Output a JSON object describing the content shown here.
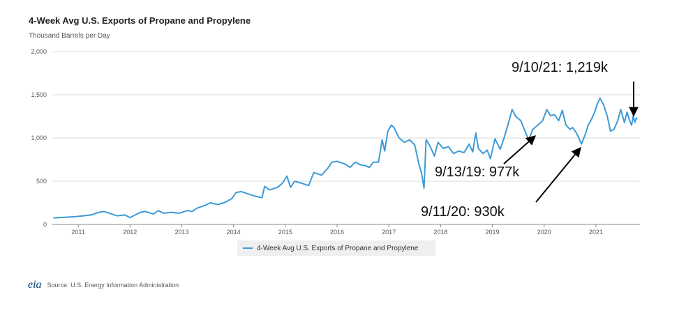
{
  "chart_data": {
    "type": "line",
    "title": "4-Week Avg U.S. Exports of Propane and Propylene",
    "subtitle": "Thousand Barrels per Day",
    "xlabel": "",
    "ylabel": "Thousand Barrels per Day",
    "xlim": [
      2010.5,
      2021.85
    ],
    "ylim": [
      0,
      2000
    ],
    "y_ticks": [
      0,
      500,
      1000,
      1500,
      2000
    ],
    "y_tick_labels": [
      "0",
      "500",
      "1,000",
      "1,500",
      "2,000"
    ],
    "x_ticks": [
      2011,
      2012,
      2013,
      2014,
      2015,
      2016,
      2017,
      2018,
      2019,
      2020,
      2021
    ],
    "x_tick_labels": [
      "2011",
      "2012",
      "2013",
      "2014",
      "2015",
      "2016",
      "2017",
      "2018",
      "2019",
      "2020",
      "2021"
    ],
    "grid": "horizontal",
    "legend_position": "bottom-center",
    "series": [
      {
        "name": "4-Week Avg U.S. Exports of Propane and Propylene",
        "color": "#3d9ad8",
        "points": [
          [
            2010.52,
            75
          ],
          [
            2010.65,
            80
          ],
          [
            2010.8,
            85
          ],
          [
            2010.95,
            90
          ],
          [
            2011.1,
            100
          ],
          [
            2011.25,
            110
          ],
          [
            2011.4,
            140
          ],
          [
            2011.5,
            150
          ],
          [
            2011.6,
            130
          ],
          [
            2011.75,
            100
          ],
          [
            2011.9,
            110
          ],
          [
            2012.0,
            80
          ],
          [
            2012.1,
            110
          ],
          [
            2012.2,
            140
          ],
          [
            2012.3,
            150
          ],
          [
            2012.45,
            120
          ],
          [
            2012.55,
            160
          ],
          [
            2012.65,
            130
          ],
          [
            2012.8,
            140
          ],
          [
            2012.95,
            130
          ],
          [
            2013.1,
            160
          ],
          [
            2013.2,
            150
          ],
          [
            2013.3,
            190
          ],
          [
            2013.45,
            220
          ],
          [
            2013.55,
            250
          ],
          [
            2013.7,
            230
          ],
          [
            2013.85,
            260
          ],
          [
            2013.97,
            300
          ],
          [
            2014.05,
            370
          ],
          [
            2014.15,
            380
          ],
          [
            2014.25,
            360
          ],
          [
            2014.4,
            330
          ],
          [
            2014.55,
            310
          ],
          [
            2014.6,
            440
          ],
          [
            2014.7,
            400
          ],
          [
            2014.85,
            430
          ],
          [
            2014.95,
            480
          ],
          [
            2015.03,
            560
          ],
          [
            2015.1,
            430
          ],
          [
            2015.18,
            500
          ],
          [
            2015.3,
            480
          ],
          [
            2015.45,
            450
          ],
          [
            2015.55,
            600
          ],
          [
            2015.7,
            570
          ],
          [
            2015.82,
            650
          ],
          [
            2015.9,
            720
          ],
          [
            2016.0,
            730
          ],
          [
            2016.15,
            700
          ],
          [
            2016.25,
            660
          ],
          [
            2016.35,
            720
          ],
          [
            2016.45,
            690
          ],
          [
            2016.55,
            680
          ],
          [
            2016.62,
            660
          ],
          [
            2016.7,
            720
          ],
          [
            2016.8,
            720
          ],
          [
            2016.87,
            980
          ],
          [
            2016.92,
            850
          ],
          [
            2016.98,
            1080
          ],
          [
            2017.05,
            1150
          ],
          [
            2017.1,
            1120
          ],
          [
            2017.2,
            1000
          ],
          [
            2017.3,
            950
          ],
          [
            2017.4,
            980
          ],
          [
            2017.5,
            920
          ],
          [
            2017.58,
            700
          ],
          [
            2017.63,
            600
          ],
          [
            2017.68,
            420
          ],
          [
            2017.72,
            980
          ],
          [
            2017.8,
            900
          ],
          [
            2017.88,
            790
          ],
          [
            2017.95,
            950
          ],
          [
            2018.05,
            880
          ],
          [
            2018.15,
            900
          ],
          [
            2018.25,
            820
          ],
          [
            2018.35,
            850
          ],
          [
            2018.45,
            830
          ],
          [
            2018.55,
            930
          ],
          [
            2018.62,
            840
          ],
          [
            2018.68,
            1060
          ],
          [
            2018.73,
            880
          ],
          [
            2018.82,
            820
          ],
          [
            2018.9,
            860
          ],
          [
            2018.96,
            760
          ],
          [
            2019.05,
            990
          ],
          [
            2019.15,
            870
          ],
          [
            2019.22,
            990
          ],
          [
            2019.3,
            1150
          ],
          [
            2019.38,
            1330
          ],
          [
            2019.45,
            1250
          ],
          [
            2019.55,
            1200
          ],
          [
            2019.65,
            1050
          ],
          [
            2019.7,
            977
          ],
          [
            2019.78,
            1100
          ],
          [
            2019.88,
            1150
          ],
          [
            2019.97,
            1200
          ],
          [
            2020.05,
            1330
          ],
          [
            2020.12,
            1260
          ],
          [
            2020.2,
            1270
          ],
          [
            2020.28,
            1200
          ],
          [
            2020.35,
            1320
          ],
          [
            2020.42,
            1150
          ],
          [
            2020.5,
            1100
          ],
          [
            2020.55,
            1120
          ],
          [
            2020.62,
            1060
          ],
          [
            2020.67,
            1000
          ],
          [
            2020.72,
            930
          ],
          [
            2020.8,
            1050
          ],
          [
            2020.85,
            1150
          ],
          [
            2020.9,
            1200
          ],
          [
            2020.97,
            1290
          ],
          [
            2021.03,
            1400
          ],
          [
            2021.08,
            1460
          ],
          [
            2021.15,
            1380
          ],
          [
            2021.22,
            1250
          ],
          [
            2021.28,
            1080
          ],
          [
            2021.35,
            1100
          ],
          [
            2021.42,
            1200
          ],
          [
            2021.48,
            1330
          ],
          [
            2021.55,
            1180
          ],
          [
            2021.6,
            1300
          ],
          [
            2021.65,
            1200
          ],
          [
            2021.69,
            1150
          ],
          [
            2021.72,
            1260
          ],
          [
            2021.75,
            1180
          ],
          [
            2021.78,
            1230
          ],
          [
            2021.8,
            1219
          ]
        ]
      }
    ],
    "annotations": [
      {
        "text": "9/10/21: 1,219k",
        "x": 2021.69,
        "y": 1219
      },
      {
        "text": "9/13/19: 977k",
        "x": 2019.7,
        "y": 977
      },
      {
        "text": "9/11/20: 930k",
        "x": 2020.72,
        "y": 930
      }
    ]
  },
  "source_text": "Source: U.S. Energy Information Administration",
  "logo_text": "eia"
}
